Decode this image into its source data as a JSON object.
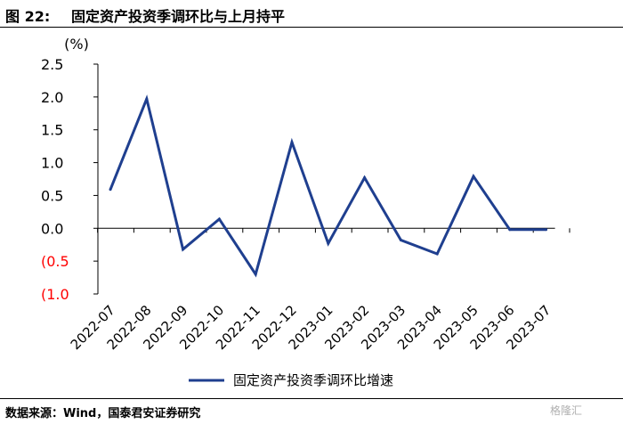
{
  "header": {
    "figure_label": "图 22:",
    "title": "固定资产投资季调环比与上月持平"
  },
  "footer": {
    "source": "数据来源：Wind，国泰君安证券研究",
    "watermark": "格隆汇"
  },
  "colors": {
    "series_line": "#1f3f8f",
    "negative_label": "#ff0000",
    "axis": "#000000"
  },
  "chart_data": {
    "type": "line",
    "ylabel": "(%)",
    "xlabel": "",
    "ylim": [
      -1.0,
      2.5
    ],
    "yticks": [
      2.5,
      2.0,
      1.5,
      1.0,
      0.5,
      0.0,
      -0.5,
      -1.0
    ],
    "ytick_labels": [
      "2.5",
      "2.0",
      "1.5",
      "1.0",
      "0.5",
      "0.0",
      "(0.5",
      "(1.0"
    ],
    "categories": [
      "2022-07",
      "2022-08",
      "2022-09",
      "2022-10",
      "2022-11",
      "2022-12",
      "2023-01",
      "2023-02",
      "2023-03",
      "2023-04",
      "2023-05",
      "2023-06",
      "2023-07"
    ],
    "series": [
      {
        "name": "固定资产投资季调环比增速",
        "values": [
          0.59,
          1.97,
          -0.32,
          0.14,
          -0.7,
          1.31,
          -0.23,
          0.77,
          -0.18,
          -0.39,
          0.79,
          -0.02,
          -0.02
        ]
      }
    ],
    "grid": false,
    "legend_position": "bottom"
  }
}
